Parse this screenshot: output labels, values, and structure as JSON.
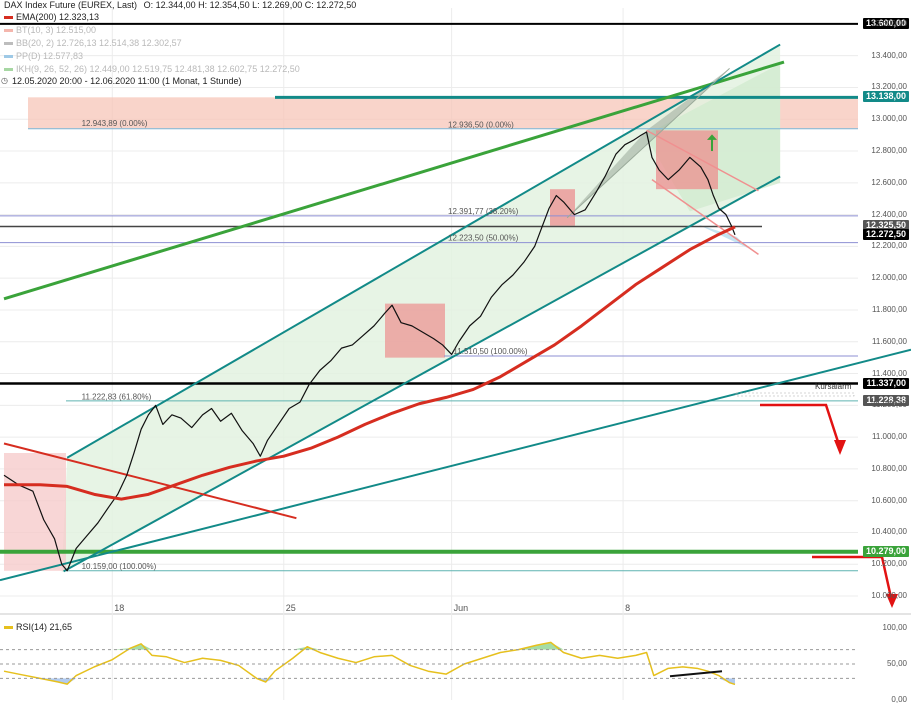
{
  "header": {
    "title": "DAX Index Future (EUREX, Last)",
    "ohlc": "O: 12.344,00  H: 12.354,50  L: 12.269,00  C: 12.272,50",
    "indicators": [
      {
        "label": "EMA(200)",
        "value": "12.323,13",
        "color": "#d62d20",
        "faint": false
      },
      {
        "label": "BT(10, 3)",
        "value": "12.515,00",
        "color": "#f4b6ad",
        "faint": true
      },
      {
        "label": "BB(20, 2)",
        "value": "12.726,13  12.514,38  12.302,57",
        "color": "#bdbdbd",
        "faint": true
      },
      {
        "label": "PP(D)",
        "value": "12.577,83",
        "color": "#9ec9e6",
        "faint": true
      },
      {
        "label": "IKH(9, 26, 52, 26)",
        "value": "12.449,00  12.519,75  12.481,38  12.602,75  12.272,50",
        "color": "#a7d7a3",
        "faint": true
      }
    ],
    "range": "12.05.2020 20:00 - 12.06.2020 11:00  (1 Monat, 1 Stunde)"
  },
  "price_tags": [
    {
      "label": "13.600,00",
      "value": 13600,
      "color": "#000000"
    },
    {
      "label": "13.138,00",
      "value": 13138,
      "color": "#128a88"
    },
    {
      "label": "12.325,50",
      "value": 12325.5,
      "color": "#555555"
    },
    {
      "label": "12.272,50",
      "value": 12272.5,
      "color": "#000000"
    },
    {
      "label": "11.337,00",
      "value": 11337,
      "color": "#000000"
    },
    {
      "label": "11.228,38",
      "value": 11228.38,
      "color": "#555555"
    },
    {
      "label": "10.279,00",
      "value": 10279,
      "color": "#3aa33a"
    }
  ],
  "annotations": {
    "kursalarm": "Kursalarm",
    "fib_labels": [
      {
        "text": "12.943,89 (0.00%)",
        "x": 4.3,
        "y": 12943.89
      },
      {
        "text": "12.936,50 (0.00%)",
        "x": 24.6,
        "y": 12936.5
      },
      {
        "text": "12.391,77 (38.20%)",
        "x": 24.6,
        "y": 12391.77
      },
      {
        "text": "12.223,50 (50.00%)",
        "x": 24.6,
        "y": 12223.5
      },
      {
        "text": "11.510,50 (100.00%)",
        "x": 24.9,
        "y": 11510.5
      },
      {
        "text": "11.222,83 (61.80%)",
        "x": 4.3,
        "y": 11222.83
      },
      {
        "text": "10.159,00 (100.00%)",
        "x": 4.3,
        "y": 10159
      }
    ]
  },
  "chart_data": {
    "type": "line",
    "title": "DAX Index Future (EUREX, Last)",
    "x_unit": "trading day index (12.05.2020 = 0)",
    "x_ticks": [
      {
        "x": 6,
        "label": "18"
      },
      {
        "x": 15.5,
        "label": "25"
      },
      {
        "x": 24.8,
        "label": "Jun"
      },
      {
        "x": 34.3,
        "label": "8"
      }
    ],
    "ylim": [
      9950,
      13700
    ],
    "y_ticks": [
      {
        "v": 13600,
        "label": "13.600,00"
      },
      {
        "v": 13400,
        "label": "13.400,00"
      },
      {
        "v": 13200,
        "label": "13.200,00"
      },
      {
        "v": 13000,
        "label": "13.000,00"
      },
      {
        "v": 12800,
        "label": "12.800,00"
      },
      {
        "v": 12600,
        "label": "12.600,00"
      },
      {
        "v": 12400,
        "label": "12.400,00"
      },
      {
        "v": 12200,
        "label": "12.200,00"
      },
      {
        "v": 12000,
        "label": "12.000,00"
      },
      {
        "v": 11800,
        "label": "11.800,00"
      },
      {
        "v": 11600,
        "label": "11.600,00"
      },
      {
        "v": 11400,
        "label": "11.400,00"
      },
      {
        "v": 11200,
        "label": "11.200,00"
      },
      {
        "v": 11000,
        "label": "11.000,00"
      },
      {
        "v": 10800,
        "label": "10.800,00"
      },
      {
        "v": 10600,
        "label": "10.600,00"
      },
      {
        "v": 10400,
        "label": "10.400,00"
      },
      {
        "v": 10200,
        "label": "10.200,00"
      },
      {
        "v": 10000,
        "label": "10.000,00"
      }
    ],
    "series": [
      {
        "name": "DAX Index Future (EUREX, Last)",
        "color": "#111111",
        "points": [
          [
            0,
            10760
          ],
          [
            0.8,
            10700
          ],
          [
            1.6,
            10660
          ],
          [
            2.2,
            10480
          ],
          [
            2.8,
            10360
          ],
          [
            3.2,
            10200
          ],
          [
            3.5,
            10159
          ],
          [
            4.0,
            10300
          ],
          [
            4.6,
            10380
          ],
          [
            5.2,
            10460
          ],
          [
            5.8,
            10560
          ],
          [
            6.3,
            10640
          ],
          [
            6.8,
            10760
          ],
          [
            7.2,
            10900
          ],
          [
            7.6,
            11050
          ],
          [
            8.0,
            11140
          ],
          [
            8.4,
            11200
          ],
          [
            8.8,
            11080
          ],
          [
            9.3,
            11140
          ],
          [
            9.8,
            11120
          ],
          [
            10.4,
            11060
          ],
          [
            11.0,
            11140
          ],
          [
            11.5,
            11180
          ],
          [
            12.0,
            11100
          ],
          [
            12.6,
            11150
          ],
          [
            13.2,
            11040
          ],
          [
            13.8,
            10960
          ],
          [
            14.2,
            10880
          ],
          [
            14.6,
            10980
          ],
          [
            15.2,
            11080
          ],
          [
            15.8,
            11180
          ],
          [
            16.4,
            11220
          ],
          [
            16.9,
            11330
          ],
          [
            17.5,
            11420
          ],
          [
            18.1,
            11480
          ],
          [
            18.7,
            11560
          ],
          [
            19.3,
            11580
          ],
          [
            19.9,
            11640
          ],
          [
            20.5,
            11700
          ],
          [
            21.1,
            11780
          ],
          [
            21.5,
            11830
          ],
          [
            22.0,
            11720
          ],
          [
            22.6,
            11700
          ],
          [
            23.2,
            11660
          ],
          [
            23.8,
            11620
          ],
          [
            24.3,
            11580
          ],
          [
            24.8,
            11520
          ],
          [
            25.2,
            11600
          ],
          [
            25.8,
            11700
          ],
          [
            26.4,
            11760
          ],
          [
            27.0,
            11880
          ],
          [
            27.6,
            11960
          ],
          [
            28.2,
            12020
          ],
          [
            28.8,
            12100
          ],
          [
            29.4,
            12200
          ],
          [
            29.8,
            12320
          ],
          [
            30.2,
            12440
          ],
          [
            30.6,
            12520
          ],
          [
            31.0,
            12480
          ],
          [
            31.6,
            12400
          ],
          [
            32.2,
            12430
          ],
          [
            32.8,
            12540
          ],
          [
            33.3,
            12640
          ],
          [
            33.9,
            12780
          ],
          [
            34.4,
            12840
          ],
          [
            34.9,
            12870
          ],
          [
            35.3,
            12900
          ],
          [
            35.6,
            12920
          ],
          [
            35.9,
            12760
          ],
          [
            36.3,
            12680
          ],
          [
            36.8,
            12620
          ],
          [
            37.4,
            12680
          ],
          [
            38.0,
            12760
          ],
          [
            38.6,
            12700
          ],
          [
            39.0,
            12620
          ],
          [
            39.3,
            12520
          ],
          [
            39.6,
            12440
          ],
          [
            40.0,
            12400
          ],
          [
            40.3,
            12330
          ],
          [
            40.5,
            12272.5
          ]
        ]
      },
      {
        "name": "EMA(200)",
        "color": "#d62d20",
        "points": [
          [
            0,
            10700
          ],
          [
            2,
            10700
          ],
          [
            3.5,
            10690
          ],
          [
            5,
            10640
          ],
          [
            6.5,
            10610
          ],
          [
            8,
            10640
          ],
          [
            9.5,
            10700
          ],
          [
            11,
            10760
          ],
          [
            12.5,
            10810
          ],
          [
            14,
            10850
          ],
          [
            15.5,
            10880
          ],
          [
            17,
            10930
          ],
          [
            18.5,
            11000
          ],
          [
            20,
            11080
          ],
          [
            21.5,
            11150
          ],
          [
            23,
            11210
          ],
          [
            24.5,
            11250
          ],
          [
            26,
            11300
          ],
          [
            27.5,
            11380
          ],
          [
            29,
            11480
          ],
          [
            30.5,
            11580
          ],
          [
            32,
            11700
          ],
          [
            33.5,
            11830
          ],
          [
            35,
            11960
          ],
          [
            36.5,
            12070
          ],
          [
            38,
            12180
          ],
          [
            39.5,
            12270
          ],
          [
            40.5,
            12323.13
          ]
        ]
      },
      {
        "name": "RSI(14)",
        "color": "#e6c01d",
        "panel": "rsi",
        "ylim": [
          0,
          100
        ],
        "last_label": "21,65",
        "points": [
          [
            0,
            40
          ],
          [
            1,
            35
          ],
          [
            2,
            30
          ],
          [
            3,
            25
          ],
          [
            3.5,
            22
          ],
          [
            4,
            34
          ],
          [
            5,
            46
          ],
          [
            6,
            56
          ],
          [
            7,
            72
          ],
          [
            7.6,
            78
          ],
          [
            8.2,
            62
          ],
          [
            9,
            60
          ],
          [
            10,
            52
          ],
          [
            11,
            58
          ],
          [
            12,
            55
          ],
          [
            13,
            48
          ],
          [
            14,
            30
          ],
          [
            14.5,
            25
          ],
          [
            15,
            40
          ],
          [
            16,
            58
          ],
          [
            16.8,
            74
          ],
          [
            17.5,
            66
          ],
          [
            18.5,
            58
          ],
          [
            19.5,
            52
          ],
          [
            20.5,
            60
          ],
          [
            21.5,
            62
          ],
          [
            22.5,
            48
          ],
          [
            23.5,
            40
          ],
          [
            24.5,
            36
          ],
          [
            25.5,
            50
          ],
          [
            26.5,
            58
          ],
          [
            27.5,
            66
          ],
          [
            28.5,
            70
          ],
          [
            29.5,
            76
          ],
          [
            30.3,
            80
          ],
          [
            31,
            66
          ],
          [
            32,
            58
          ],
          [
            33,
            62
          ],
          [
            34,
            58
          ],
          [
            35,
            62
          ],
          [
            35.6,
            66
          ],
          [
            36,
            34
          ],
          [
            36.8,
            44
          ],
          [
            37.6,
            46
          ],
          [
            38.4,
            44
          ],
          [
            39,
            40
          ],
          [
            39.6,
            34
          ],
          [
            40.2,
            24
          ],
          [
            40.5,
            21.65
          ]
        ]
      }
    ],
    "rsi_ticks": [
      {
        "v": 100,
        "label": "100,00"
      },
      {
        "v": 50,
        "label": "50,00"
      },
      {
        "v": 0,
        "label": "0,00"
      }
    ]
  }
}
